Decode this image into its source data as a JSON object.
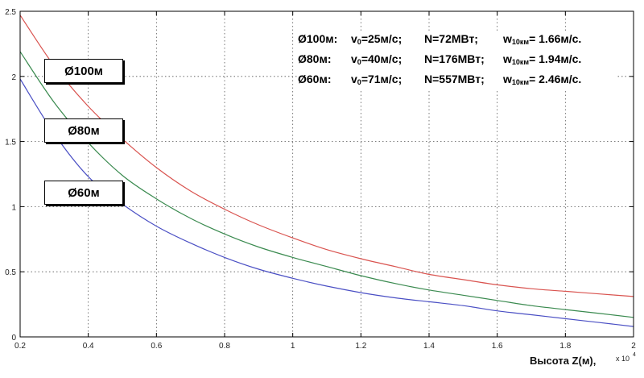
{
  "chart_data": {
    "type": "line",
    "xlim": [
      0.2,
      2
    ],
    "ylim": [
      0,
      2.5
    ],
    "x_ticks": [
      "0.2",
      "0.4",
      "0.6",
      "0.8",
      "1",
      "1.2",
      "1.4",
      "1.6",
      "1.8",
      "2"
    ],
    "y_ticks": [
      "0",
      "0.5",
      "1",
      "1.5",
      "2",
      "2.5"
    ],
    "x_tick_values": [
      0.2,
      0.4,
      0.6,
      0.8,
      1.0,
      1.2,
      1.4,
      1.6,
      1.8,
      2.0
    ],
    "y_tick_values": [
      0,
      0.5,
      1,
      1.5,
      2,
      2.5
    ],
    "xlabel": "Высота Z(м),",
    "x_exponent": "x 10",
    "x_exponent_power": "4",
    "grid": true,
    "series": [
      {
        "name": "Ø100м",
        "color": "#d9534f",
        "x": [
          0.2,
          0.3,
          0.4,
          0.5,
          0.6,
          0.7,
          0.8,
          0.9,
          1.0,
          1.1,
          1.2,
          1.3,
          1.4,
          1.5,
          1.6,
          1.7,
          1.8,
          1.9,
          2.0
        ],
        "y": [
          2.47,
          2.08,
          1.77,
          1.52,
          1.3,
          1.12,
          0.98,
          0.86,
          0.76,
          0.67,
          0.6,
          0.54,
          0.48,
          0.44,
          0.4,
          0.37,
          0.35,
          0.33,
          0.31
        ]
      },
      {
        "name": "Ø80м",
        "color": "#3a8a4f",
        "x": [
          0.2,
          0.3,
          0.4,
          0.5,
          0.6,
          0.7,
          0.8,
          0.9,
          1.0,
          1.1,
          1.2,
          1.3,
          1.4,
          1.5,
          1.6,
          1.7,
          1.8,
          1.9,
          2.0
        ],
        "y": [
          2.19,
          1.8,
          1.49,
          1.24,
          1.06,
          0.91,
          0.79,
          0.69,
          0.61,
          0.54,
          0.47,
          0.41,
          0.36,
          0.32,
          0.28,
          0.24,
          0.21,
          0.18,
          0.15
        ]
      },
      {
        "name": "Ø60м",
        "color": "#4a4fc4",
        "x": [
          0.2,
          0.3,
          0.4,
          0.5,
          0.6,
          0.7,
          0.8,
          0.9,
          1.0,
          1.1,
          1.2,
          1.3,
          1.4,
          1.5,
          1.6,
          1.7,
          1.8,
          1.9,
          2.0
        ],
        "y": [
          1.98,
          1.56,
          1.23,
          1.02,
          0.85,
          0.72,
          0.61,
          0.52,
          0.45,
          0.39,
          0.34,
          0.3,
          0.27,
          0.24,
          0.2,
          0.17,
          0.14,
          0.11,
          0.08
        ]
      }
    ],
    "legend": [
      {
        "label": "Ø100м"
      },
      {
        "label": "Ø80м"
      },
      {
        "label": "Ø60м"
      }
    ],
    "annotation_rows": [
      {
        "d": "Ø100м:",
        "v0": "v",
        "v0_sub": "0",
        "v0_val": "=25м/с;",
        "n": "N=72МВт;",
        "w": "w",
        "w_sub": "10км",
        "w_val": "= 1.66м/с."
      },
      {
        "d": "Ø80м:",
        "v0": "v",
        "v0_sub": "0",
        "v0_val": "=40м/с;",
        "n": "N=176МВт;",
        "w": "w",
        "w_sub": "10км",
        "w_val": "= 1.94м/с."
      },
      {
        "d": "Ø60м:",
        "v0": "v",
        "v0_sub": "0",
        "v0_val": "=71м/с;",
        "n": "N=557МВт;",
        "w": "w",
        "w_sub": "10км",
        "w_val": "= 2.46м/с."
      }
    ]
  }
}
